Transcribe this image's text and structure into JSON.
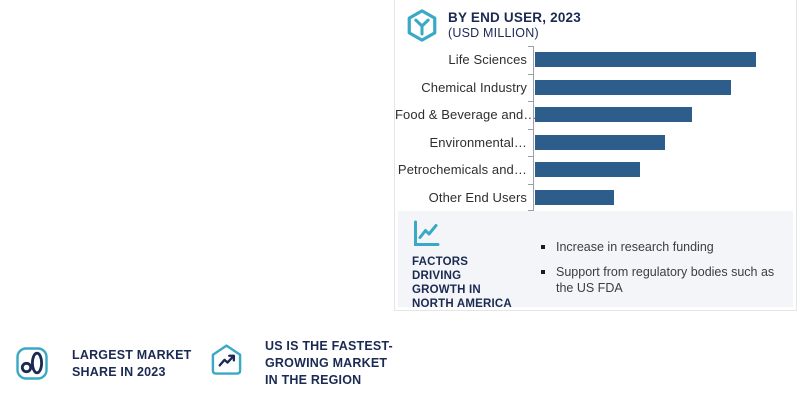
{
  "colors": {
    "accent_teal": "#3aa9c5",
    "bar_blue": "#2d5e8b",
    "navy_text": "#1b2a52",
    "panel_bg": "#f3f5f8",
    "card_border": "#e4e5e9",
    "axis_gray": "#9aa0a8"
  },
  "chart_panel": {
    "header": {
      "icon": "hexagon-cube-icon",
      "title": "BY END USER, 2023",
      "subtitle": "(USD MILLION)"
    },
    "factors": {
      "icon": "line-chart-icon",
      "title": "FACTORS DRIVING GROWTH IN NORTH AMERICA",
      "bullets": [
        "Increase in research funding",
        "Support from regulatory bodies such as the US FDA"
      ]
    }
  },
  "chart_data": {
    "type": "bar",
    "orientation": "horizontal",
    "title": "BY END USER, 2023",
    "units": "(USD MILLION)",
    "value_axis_labels_shown": false,
    "grid": "off",
    "legend": "none",
    "bar_color": "#2d5e8b",
    "categories": [
      "Life Sciences",
      "Chemical Industry",
      "Food & Beverage and…",
      "Environmental…",
      "Petrochemicals and…",
      "Other End Users"
    ],
    "values_relative_to_max_pct": [
      100,
      88.5,
      70.9,
      59.0,
      47.6,
      35.7
    ],
    "bars": [
      {
        "label": "Life Sciences",
        "width_pct": 86.6
      },
      {
        "label": "Chemical Industry",
        "width_pct": 76.7
      },
      {
        "label": "Food & Beverage and…",
        "width_pct": 61.5
      },
      {
        "label": "Environmental…",
        "width_pct": 51.1
      },
      {
        "label": "Petrochemicals and…",
        "width_pct": 41.2
      },
      {
        "label": "Other End Users",
        "width_pct": 30.9
      }
    ]
  },
  "badges": [
    {
      "icon": "bar-chart-rounded-square-icon",
      "label": "LARGEST MARKET SHARE IN 2023"
    },
    {
      "icon": "house-growth-arrow-icon",
      "label": "US IS THE FASTEST-GROWING MARKET IN THE REGION"
    }
  ]
}
